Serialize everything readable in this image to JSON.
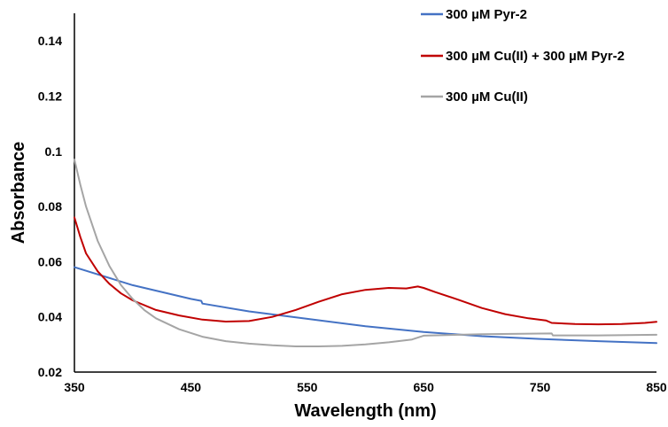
{
  "chart_data": {
    "type": "line",
    "xlabel": "Wavelength (nm)",
    "ylabel": "Absorbance",
    "xlim": [
      350,
      850
    ],
    "ylim": [
      0.02,
      0.15
    ],
    "xticks": [
      "350",
      "450",
      "550",
      "650",
      "750",
      "850"
    ],
    "xtick_values": [
      350,
      450,
      550,
      650,
      750,
      850
    ],
    "yticks": [
      "0.02",
      "0.04",
      "0.06",
      "0.08",
      "0.1",
      "0.12",
      "0.14"
    ],
    "ytick_values": [
      0.02,
      0.04,
      0.06,
      0.08,
      0.1,
      0.12,
      0.14
    ],
    "grid": false,
    "legend_position": "top-right",
    "series": [
      {
        "name": "300 µM Pyr-2",
        "color": "#4472c4",
        "x": [
          350,
          400,
          450,
          459,
          460,
          500,
          550,
          600,
          650,
          700,
          750,
          800,
          850
        ],
        "y": [
          0.058,
          0.0515,
          0.0465,
          0.0458,
          0.0448,
          0.042,
          0.0393,
          0.0366,
          0.0345,
          0.033,
          0.032,
          0.0312,
          0.0305
        ]
      },
      {
        "name": "300 µM Cu(II) + 300 µM Pyr-2",
        "color": "#c00000",
        "x": [
          350,
          355,
          360,
          370,
          380,
          390,
          400,
          420,
          440,
          460,
          480,
          500,
          520,
          540,
          560,
          580,
          600,
          620,
          635,
          645,
          650,
          660,
          680,
          700,
          720,
          740,
          755,
          760,
          780,
          800,
          820,
          840,
          850
        ],
        "y": [
          0.076,
          0.069,
          0.063,
          0.0565,
          0.052,
          0.0485,
          0.046,
          0.0425,
          0.0405,
          0.039,
          0.0383,
          0.0385,
          0.04,
          0.0425,
          0.0455,
          0.0482,
          0.0498,
          0.0505,
          0.0503,
          0.051,
          0.0505,
          0.049,
          0.0462,
          0.0432,
          0.041,
          0.0395,
          0.0387,
          0.0378,
          0.0374,
          0.0373,
          0.0374,
          0.0378,
          0.0382
        ]
      },
      {
        "name": "300 µM Cu(II)",
        "color": "#a5a5a5",
        "x": [
          350,
          355,
          360,
          370,
          380,
          390,
          400,
          410,
          420,
          440,
          460,
          480,
          500,
          520,
          540,
          560,
          580,
          600,
          620,
          640,
          645,
          650,
          700,
          760,
          761,
          800,
          850
        ],
        "y": [
          0.097,
          0.088,
          0.08,
          0.0675,
          0.0585,
          0.0515,
          0.0465,
          0.0425,
          0.0395,
          0.0355,
          0.0328,
          0.0312,
          0.0303,
          0.0297,
          0.0293,
          0.0293,
          0.0295,
          0.03,
          0.0308,
          0.0318,
          0.0325,
          0.0332,
          0.0337,
          0.034,
          0.0333,
          0.0333,
          0.0335
        ]
      }
    ]
  }
}
